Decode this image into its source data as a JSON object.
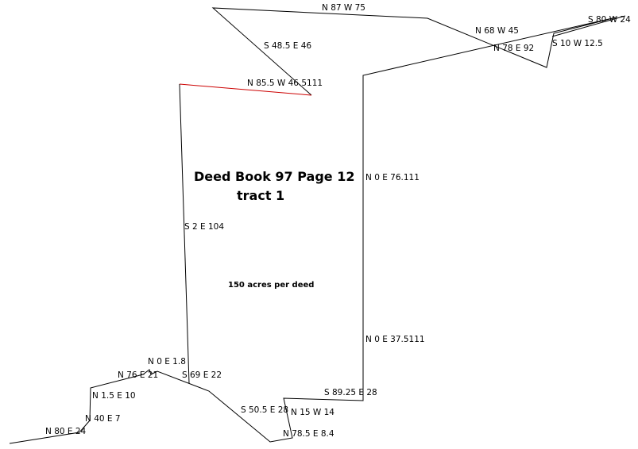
{
  "title": "Deed Book 97 Page 12",
  "subtitle": "tract 1",
  "note": "150 acres per deed",
  "colors": {
    "line": "#000000",
    "highlight": "#cc0000"
  },
  "calls": {
    "n87w75": "N 87 W 75",
    "s48e46": "S 48.5 E 46",
    "n85w46": "N 85.5 W 46.5111",
    "n68w45": "N 68 W 45",
    "n78e92": "N 78 E 92",
    "s80w24": "S 80 W 24",
    "s10w12": "S 10 W 12.5",
    "n0e76": "N 0 E 76.111",
    "s2e104": "S 2 E 104",
    "n0e37": "N 0 E 37.5111",
    "n0e1": "N 0 E 1.8",
    "n76e21": "N 76 E 21",
    "s69e22": "S 69 E 22",
    "n1e10": "N 1.5 E 10",
    "n40e7": "N 40 E 7",
    "n80e24": "N 80 E 24",
    "s89e28": "S 89.25 E 28",
    "s50e28": "S 50.5 E 28",
    "n15w14": "N 15 W 14",
    "n78e8": "N 78.5 E 8.4"
  }
}
